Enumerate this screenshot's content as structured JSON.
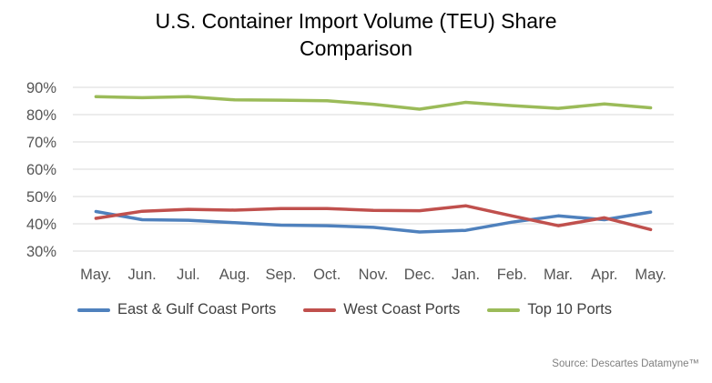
{
  "chart_data": {
    "type": "line",
    "title": [
      "U.S. Container Import Volume (TEU) Share",
      "Comparison"
    ],
    "xlabel": "",
    "ylabel": "",
    "categories": [
      "May.",
      "Jun.",
      "Jul.",
      "Aug.",
      "Sep.",
      "Oct.",
      "Nov.",
      "Dec.",
      "Jan.",
      "Feb.",
      "Mar.",
      "Apr.",
      "May."
    ],
    "yticks": [
      "30%",
      "40%",
      "50%",
      "60%",
      "70%",
      "80%",
      "90%"
    ],
    "ylim": [
      30,
      90
    ],
    "grid": "horizontal",
    "legend": "bottom",
    "series": [
      {
        "name": "East & Gulf Coast Ports",
        "color": "#4f81bd",
        "values": [
          44.5,
          41.5,
          41.3,
          40.4,
          39.5,
          39.3,
          38.7,
          37.0,
          37.6,
          40.6,
          42.9,
          41.5,
          44.3
        ]
      },
      {
        "name": "West Coast Ports",
        "color": "#c0504d",
        "values": [
          42.0,
          44.6,
          45.3,
          45.0,
          45.6,
          45.6,
          44.9,
          44.8,
          46.6,
          42.9,
          39.3,
          42.2,
          37.9
        ]
      },
      {
        "name": "Top 10 Ports",
        "color": "#9bbb59",
        "values": [
          86.6,
          86.2,
          86.6,
          85.4,
          85.3,
          85.1,
          83.8,
          82.0,
          84.5,
          83.3,
          82.3,
          83.9,
          82.5
        ]
      }
    ]
  },
  "source": "Source: Descartes Datamyne™"
}
